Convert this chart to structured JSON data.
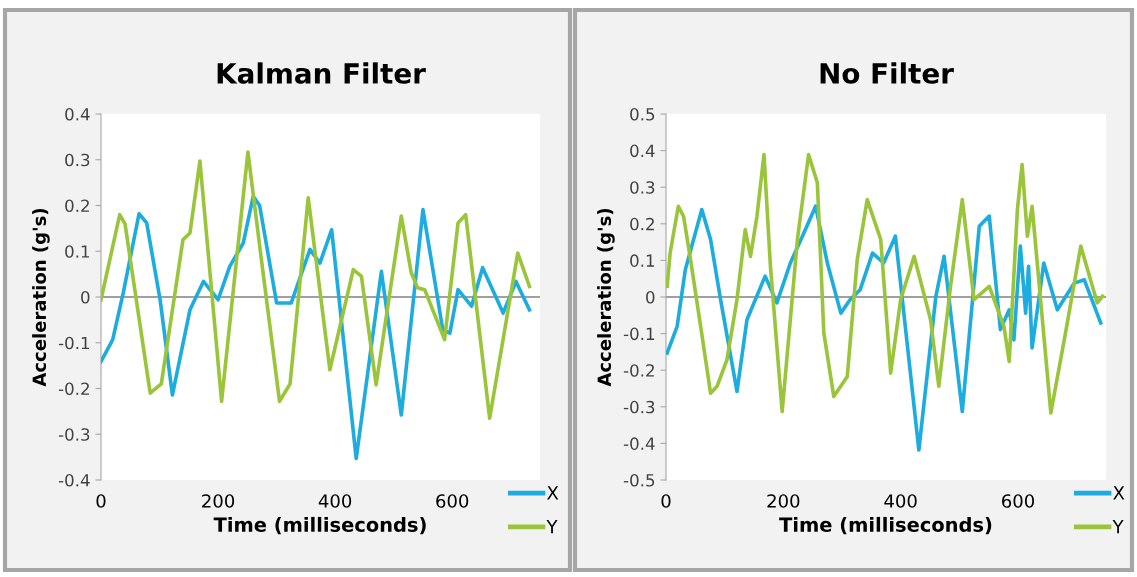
{
  "chart_data": [
    {
      "type": "line",
      "title": "Kalman Filter",
      "xlabel": "Time (milliseconds)",
      "ylabel": "Acceleration (g's)",
      "xlim": [
        0,
        750
      ],
      "xticks": [
        0,
        200,
        400,
        600
      ],
      "ylim": [
        -0.4,
        0.4
      ],
      "yticks": [
        -0.4,
        -0.3,
        -0.2,
        -0.1,
        0,
        0.1,
        0.2,
        0.3,
        0.4
      ],
      "grid": false,
      "legend": "bottom right",
      "marker": "none",
      "line_style": "solid",
      "ref_lines": [
        {
          "axis": "y",
          "value": 0,
          "color": "#808080"
        }
      ],
      "series": [
        {
          "name": "X",
          "color": "#1cacdf",
          "x": [
            0,
            20,
            38,
            65,
            78,
            101,
            122,
            152,
            175,
            200,
            220,
            243,
            260,
            271,
            300,
            325,
            357,
            374,
            394,
            436,
            479,
            513,
            550,
            584,
            596,
            610,
            633,
            652,
            687,
            709,
            732
          ],
          "values": [
            -0.141,
            -0.093,
            0.009,
            0.182,
            0.162,
            -0.006,
            -0.214,
            -0.028,
            0.034,
            -0.006,
            0.067,
            0.118,
            0.22,
            0.2,
            -0.013,
            -0.013,
            0.104,
            0.074,
            0.147,
            -0.353,
            0.056,
            -0.258,
            0.191,
            -0.072,
            -0.079,
            0.016,
            -0.02,
            0.064,
            -0.035,
            0.034,
            -0.028
          ]
        },
        {
          "name": "Y",
          "color": "#9ac53a",
          "x": [
            0,
            32,
            41,
            84,
            103,
            140,
            152,
            169,
            206,
            251,
            274,
            305,
            323,
            354,
            391,
            431,
            445,
            470,
            513,
            530,
            541,
            553,
            587,
            610,
            623,
            664,
            712,
            732
          ],
          "values": [
            -0.006,
            0.18,
            0.16,
            -0.21,
            -0.19,
            0.125,
            0.14,
            0.297,
            -0.228,
            0.317,
            0.082,
            -0.228,
            -0.19,
            0.217,
            -0.159,
            0.06,
            0.045,
            -0.192,
            0.177,
            0.053,
            0.02,
            0.016,
            -0.093,
            0.162,
            0.18,
            -0.265,
            0.096,
            0.023
          ]
        }
      ]
    },
    {
      "type": "line",
      "title": "No Filter",
      "xlabel": "Time (milliseconds)",
      "ylabel": "Acceleration (g's)",
      "xlim": [
        0,
        750
      ],
      "xticks": [
        0,
        200,
        400,
        600
      ],
      "ylim": [
        -0.5,
        0.5
      ],
      "yticks": [
        -0.5,
        -0.4,
        -0.3,
        -0.2,
        -0.1,
        0,
        0.1,
        0.2,
        0.3,
        0.4,
        0.5
      ],
      "grid": false,
      "legend": "bottom right",
      "marker": "none",
      "line_style": "solid",
      "ref_lines": [
        {
          "axis": "y",
          "value": 0,
          "color": "#808080"
        }
      ],
      "series": [
        {
          "name": "X",
          "color": "#1cacdf",
          "x": [
            2,
            19,
            33,
            61,
            76,
            93,
            121,
            138,
            169,
            189,
            212,
            235,
            255,
            275,
            298,
            314,
            331,
            352,
            371,
            391,
            431,
            460,
            474,
            505,
            534,
            551,
            570,
            585,
            593,
            604,
            613,
            618,
            624,
            644,
            667,
            696,
            713,
            741
          ],
          "values": [
            -0.153,
            -0.08,
            0.075,
            0.239,
            0.157,
            -0.007,
            -0.258,
            -0.062,
            0.057,
            -0.016,
            0.093,
            0.175,
            0.248,
            0.093,
            -0.044,
            -0.007,
            0.02,
            0.12,
            0.093,
            0.166,
            -0.418,
            0.002,
            0.111,
            -0.313,
            0.193,
            0.221,
            -0.089,
            -0.035,
            -0.117,
            0.139,
            -0.044,
            0.084,
            -0.139,
            0.093,
            -0.035,
            0.038,
            0.047,
            -0.071
          ]
        },
        {
          "name": "Y",
          "color": "#9ac53a",
          "x": [
            2,
            7,
            13,
            21,
            30,
            41,
            59,
            76,
            87,
            104,
            121,
            135,
            144,
            155,
            167,
            178,
            198,
            224,
            243,
            258,
            269,
            286,
            309,
            326,
            343,
            366,
            383,
            400,
            423,
            451,
            465,
            485,
            505,
            525,
            551,
            576,
            585,
            599,
            607,
            616,
            624,
            656,
            681,
            707,
            735,
            744
          ],
          "values": [
            0.029,
            0.12,
            0.175,
            0.248,
            0.22,
            0.111,
            -0.08,
            -0.263,
            -0.244,
            -0.171,
            -0.007,
            0.184,
            0.111,
            0.22,
            0.389,
            0.084,
            -0.313,
            0.157,
            0.389,
            0.312,
            -0.098,
            -0.272,
            -0.217,
            0.102,
            0.266,
            0.157,
            -0.208,
            -0.007,
            0.111,
            -0.062,
            -0.244,
            0.029,
            0.266,
            -0.007,
            0.029,
            -0.08,
            -0.176,
            0.239,
            0.362,
            0.166,
            0.248,
            -0.317,
            -0.098,
            0.139,
            -0.016,
            0.002
          ]
        }
      ]
    }
  ]
}
